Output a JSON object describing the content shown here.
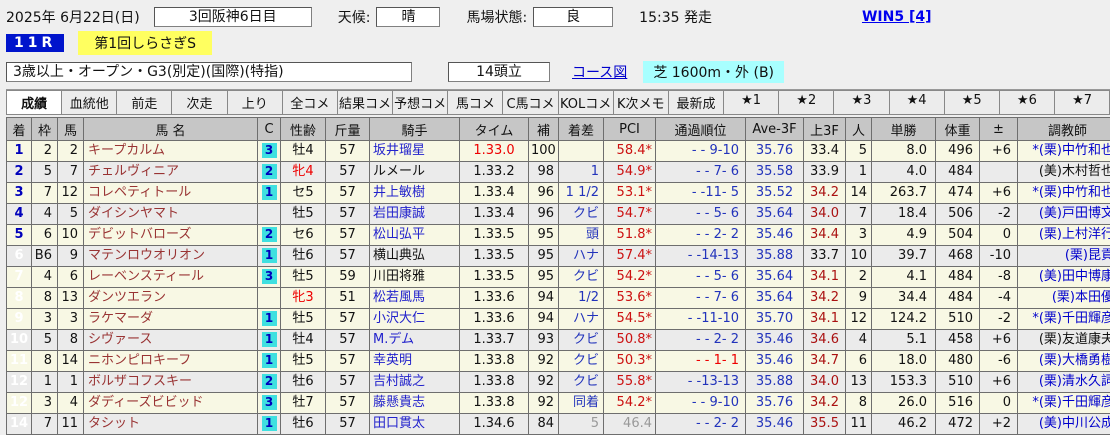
{
  "header": {
    "date": "2025年 6月22日(日)",
    "meeting": "3回阪神6日目",
    "weather_label": "天候:",
    "weather": "晴",
    "track_condition_label": "馬場状態:",
    "track_condition": "良",
    "start_time": "15:35 発走",
    "win5": "WIN5 [4]",
    "race_number": "11R",
    "race_name": "第1回しらさぎS",
    "race_conditions": "3歳以上・オープン・G3(別定)(国際)(特指)",
    "field_size": "14頭立",
    "course_map_label": "コース図",
    "course": "芝 1600m・外 (B)"
  },
  "colors": {
    "accent_blue": "#0014cc",
    "race_name_bg": "#ffff60",
    "course_bg": "#a8ffff",
    "first_favorite": "#ffff00",
    "second_favorite": "#00ffff",
    "third_favorite": "#00d833",
    "index_top": "#ff66ff"
  },
  "tabs": [
    "成績",
    "血統他",
    "前走",
    "次走",
    "上り",
    "全コメ",
    "結果コメ",
    "予想コメ",
    "馬コメ",
    "C馬コメ",
    "KOLコメ",
    "K次メモ",
    "最新成",
    "★1",
    "★2",
    "★3",
    "★4",
    "★5",
    "★6",
    "★7"
  ],
  "table": {
    "columns": [
      "着",
      "枠",
      "馬",
      "馬 名",
      "C",
      "性齢",
      "斤量",
      "騎手",
      "タイム",
      "補",
      "着差",
      "PCI",
      "通過順位",
      "Ave-3F",
      "上3F",
      "人",
      "単勝",
      "体重",
      "±",
      "調教師"
    ],
    "rows": [
      {
        "pos": "1",
        "waku": "2",
        "uma": "2",
        "name": "キープカルム",
        "c": "3",
        "sexAge": "牡4",
        "weight": "57",
        "jockey": "坂井瑠星",
        "time": "1.33.0",
        "idx": "100",
        "margin": "",
        "pci": "58.4*",
        "pass": "- - 9-10",
        "ave3f": "35.76",
        "last3f": "33.4",
        "pop": "5",
        "odds": "8.0",
        "hw": "496",
        "hwDiff": "+6",
        "trainer": "*(栗)中竹和也",
        "rowBg": "cream",
        "hl": {
          "pos": "bg-poscyan txt-dkblue",
          "name": "bg-lightcyan",
          "jockey": "bg-yellow",
          "time": "txt-red",
          "idx": "bg-magenta",
          "last3f": "bg-yellow txt-black",
          "trainer": "bg-yellow"
        }
      },
      {
        "pos": "2",
        "waku": "5",
        "uma": "7",
        "name": "チェルヴィニア",
        "c": "2",
        "sexAge": "牝4",
        "weight": "57",
        "jockey": "ルメール",
        "time": "1.33.2",
        "idx": "98",
        "margin": "1",
        "pci": "54.9*",
        "pass": "- - 7- 6",
        "ave3f": "35.58",
        "last3f": "33.9",
        "pop": "1",
        "odds": "4.0",
        "hw": "484",
        "hwDiff": "",
        "trainer": "(美)木村哲也",
        "rowBg": "gray",
        "hl": {
          "pos": "bg-poscyan txt-dkblue",
          "waku": "bg-paleyellow",
          "uma": "bg-paleyellow",
          "name": "bg-lightcyan",
          "sexAge": "bg-paleyellow txt-red",
          "weight": "bg-paleyellow",
          "jockey": "bg-green",
          "idx": "bg-yellow",
          "last3f": "bg-green txt-black",
          "pop": "bg-yellow",
          "odds": "bg-yellow",
          "trainer": "bg-cyan"
        }
      },
      {
        "pos": "3",
        "waku": "7",
        "uma": "12",
        "name": "コレペティトール",
        "c": "1",
        "sexAge": "セ5",
        "weight": "57",
        "jockey": "井上敏樹",
        "time": "1.33.4",
        "idx": "96",
        "margin": "1 1/2",
        "pci": "53.1*",
        "pass": "- -11- 5",
        "ave3f": "35.52",
        "last3f": "34.2",
        "pop": "14",
        "odds": "263.7",
        "hw": "474",
        "hwDiff": "+6",
        "trainer": "*(栗)中竹和也",
        "rowBg": "cream",
        "hl": {
          "pos": "bg-poscyan txt-dkblue",
          "name": "bg-lightcyan",
          "idx": "bg-yellow",
          "trainer": "bg-yellow"
        }
      },
      {
        "pos": "4",
        "waku": "4",
        "uma": "5",
        "name": "ダイシンヤマト",
        "c": "",
        "sexAge": "牡5",
        "weight": "57",
        "jockey": "岩田康誠",
        "time": "1.33.4",
        "idx": "96",
        "margin": "クビ",
        "pci": "54.7*",
        "pass": "- - 5- 6",
        "ave3f": "35.64",
        "last3f": "34.0",
        "pop": "7",
        "odds": "18.4",
        "hw": "506",
        "hwDiff": "-2",
        "trainer": "(美)戸田博文",
        "rowBg": "gray",
        "hl": {
          "pos": "bg-poscyan txt-dkblue",
          "idx": "bg-yellow",
          "trainer": "bg-pink"
        }
      },
      {
        "pos": "5",
        "waku": "6",
        "uma": "10",
        "name": "デビットバローズ",
        "c": "2",
        "sexAge": "セ6",
        "weight": "57",
        "jockey": "松山弘平",
        "time": "1.33.5",
        "idx": "95",
        "margin": "頭",
        "pci": "51.8*",
        "pass": "- - 2- 2",
        "ave3f": "35.46",
        "last3f": "34.4",
        "pop": "3",
        "odds": "4.9",
        "hw": "504",
        "hwDiff": "0",
        "trainer": "(栗)上村洋行",
        "rowBg": "cream",
        "hl": {
          "pos": "bg-poscyan txt-dkblue",
          "name": "bg-lightcyan",
          "idx": "bg-yellow",
          "pop": "bg-green",
          "odds": "bg-green",
          "trainer": "bg-yellow"
        }
      },
      {
        "pos": "6",
        "waku": "B6",
        "uma": "9",
        "name": "マテンロウオリオン",
        "c": "1",
        "sexAge": "牡6",
        "weight": "57",
        "jockey": "横山典弘",
        "time": "1.33.5",
        "idx": "95",
        "margin": "ハナ",
        "pci": "57.4*",
        "pass": "- -14-13",
        "ave3f": "35.88",
        "last3f": "33.7",
        "pop": "10",
        "odds": "39.7",
        "hw": "468",
        "hwDiff": "-10",
        "trainer": "(栗)昆貢",
        "rowBg": "gray",
        "hl": {
          "pos": "bg-posblue txt-white",
          "name": "bg-lightcyan",
          "jockey": "txt-black",
          "idx": "bg-yellow",
          "last3f": "bg-cyan txt-black"
        }
      },
      {
        "pos": "7",
        "waku": "4",
        "uma": "6",
        "name": "レーベンスティール",
        "c": "3",
        "sexAge": "牡5",
        "weight": "59",
        "jockey": "川田将雅",
        "time": "1.33.5",
        "idx": "95",
        "margin": "クビ",
        "pci": "54.2*",
        "pass": "- - 5- 6",
        "ave3f": "35.64",
        "last3f": "34.1",
        "pop": "2",
        "odds": "4.1",
        "hw": "484",
        "hwDiff": "-8",
        "trainer": "(美)田中博康",
        "rowBg": "cream",
        "hl": {
          "pos": "bg-posblue txt-white",
          "waku": "bg-palegreen",
          "uma": "bg-palegreen",
          "name": "bg-lightcyan",
          "sexAge": "bg-palegreen",
          "weight": "bg-palegreen",
          "jockey": "bg-green",
          "idx": "bg-yellow",
          "pop": "bg-cyan",
          "odds": "bg-cyan"
        }
      },
      {
        "pos": "8",
        "waku": "8",
        "uma": "13",
        "name": "ダンツエラン",
        "c": "",
        "sexAge": "牝3",
        "weight": "51",
        "jockey": "松若風馬",
        "time": "1.33.6",
        "idx": "94",
        "margin": "1/2",
        "pci": "53.6*",
        "pass": "- - 7- 6",
        "ave3f": "35.64",
        "last3f": "34.2",
        "pop": "9",
        "odds": "34.4",
        "hw": "484",
        "hwDiff": "-4",
        "trainer": "(栗)本田優",
        "rowBg": "cream",
        "hl": {
          "pos": "bg-posblue txt-white",
          "sexAge": "txt-red",
          "idx": "bg-cyan",
          "trainer": "bg-pink"
        }
      },
      {
        "pos": "9",
        "waku": "3",
        "uma": "3",
        "name": "ラケマーダ",
        "c": "1",
        "sexAge": "牡5",
        "weight": "57",
        "jockey": "小沢大仁",
        "time": "1.33.6",
        "idx": "94",
        "margin": "ハナ",
        "pci": "54.5*",
        "pass": "- -11-10",
        "ave3f": "35.70",
        "last3f": "34.1",
        "pop": "12",
        "odds": "124.2",
        "hw": "510",
        "hwDiff": "-2",
        "trainer": "*(栗)千田輝彦",
        "rowBg": "cream",
        "hl": {
          "pos": "bg-posblue txt-white",
          "name": "bg-lightcyan",
          "jockey": "bg-pink",
          "idx": "bg-cyan"
        }
      },
      {
        "pos": "10",
        "waku": "5",
        "uma": "8",
        "name": "シヴァース",
        "c": "1",
        "sexAge": "牡4",
        "weight": "57",
        "jockey": "M.デム",
        "time": "1.33.7",
        "idx": "93",
        "margin": "クビ",
        "pci": "50.8*",
        "pass": "- - 2- 2",
        "ave3f": "35.46",
        "last3f": "34.6",
        "pop": "4",
        "odds": "5.1",
        "hw": "458",
        "hwDiff": "+6",
        "trainer": "(栗)友道康夫",
        "rowBg": "gray",
        "hl": {
          "pos": "bg-posblue txt-white",
          "name": "bg-lightcyan",
          "idx": "bg-cyan",
          "trainer": "bg-cyan"
        }
      },
      {
        "pos": "11",
        "waku": "8",
        "uma": "14",
        "name": "ニホンピロキーフ",
        "c": "1",
        "sexAge": "牡5",
        "weight": "57",
        "jockey": "幸英明",
        "time": "1.33.8",
        "idx": "92",
        "margin": "クビ",
        "pci": "50.3*",
        "pass": "- - 1- 1",
        "ave3f": "35.46",
        "last3f": "34.7",
        "pop": "6",
        "odds": "18.0",
        "hw": "480",
        "hwDiff": "-6",
        "trainer": "(栗)大橋勇樹",
        "rowBg": "cream",
        "hl": {
          "pos": "bg-posblue txt-white",
          "name": "bg-lightcyan",
          "idx": "bg-cyan",
          "pass": "txt-red"
        }
      },
      {
        "pos": "12",
        "waku": "1",
        "uma": "1",
        "name": "ボルザコフスキー",
        "c": "2",
        "sexAge": "牡6",
        "weight": "57",
        "jockey": "吉村誠之",
        "time": "1.33.8",
        "idx": "92",
        "margin": "クビ",
        "pci": "55.8*",
        "pass": "- -13-13",
        "ave3f": "35.88",
        "last3f": "34.0",
        "pop": "13",
        "odds": "153.3",
        "hw": "510",
        "hwDiff": "+6",
        "trainer": "(栗)清水久詞",
        "rowBg": "gray",
        "hl": {
          "pos": "bg-posblue txt-white",
          "name": "bg-lightcyan",
          "jockey": "bg-pink",
          "idx": "bg-cyan",
          "trainer": "bg-yellow"
        }
      },
      {
        "pos": "12",
        "waku": "3",
        "uma": "4",
        "name": "ダディーズビビッド",
        "c": "3",
        "sexAge": "牡7",
        "weight": "57",
        "jockey": "藤懸貴志",
        "time": "1.33.8",
        "idx": "92",
        "margin": "同着",
        "pci": "54.2*",
        "pass": "- - 9-10",
        "ave3f": "35.76",
        "last3f": "34.2",
        "pop": "8",
        "odds": "26.0",
        "hw": "516",
        "hwDiff": "0",
        "trainer": "*(栗)千田輝彦",
        "rowBg": "cream",
        "hl": {
          "pos": "bg-posblue txt-white",
          "name": "bg-lightcyan",
          "jockey": "bg-yellow",
          "idx": "bg-cyan"
        }
      },
      {
        "pos": "14",
        "waku": "7",
        "uma": "11",
        "name": "タシット",
        "c": "1",
        "sexAge": "牡6",
        "weight": "57",
        "jockey": "田口貫太",
        "time": "1.34.6",
        "idx": "84",
        "margin": "5",
        "pci": "46.4",
        "pass": "- - 2- 2",
        "ave3f": "35.46",
        "last3f": "35.5",
        "pop": "11",
        "odds": "46.2",
        "hw": "472",
        "hwDiff": "+2",
        "trainer": "(美)中川公成",
        "rowBg": "gray",
        "hl": {
          "pos": "bg-posblue txt-white",
          "name": "bg-lightcyan",
          "idx": "bg-graycell",
          "pci": "txt-gray",
          "margin": "txt-gray",
          "trainer": "bg-brightgreen"
        }
      }
    ]
  }
}
